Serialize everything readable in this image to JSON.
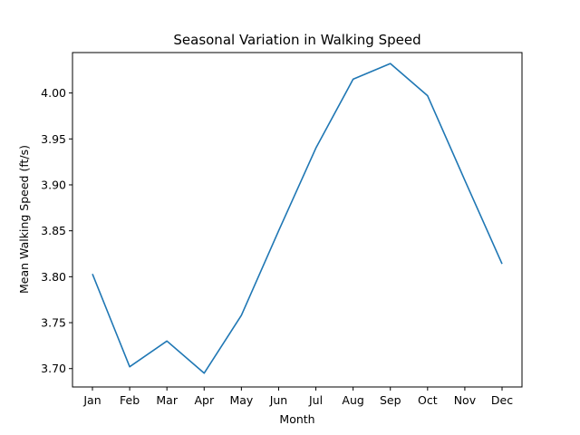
{
  "chart_data": {
    "type": "line",
    "title": "Seasonal Variation in Walking Speed",
    "xlabel": "Month",
    "ylabel": "Mean Walking Speed (ft/s)",
    "categories": [
      "Jan",
      "Feb",
      "Mar",
      "Apr",
      "May",
      "Jun",
      "Jul",
      "Aug",
      "Sep",
      "Oct",
      "Nov",
      "Dec"
    ],
    "series": [
      {
        "values": [
          3.803,
          3.702,
          3.73,
          3.695,
          3.758,
          3.85,
          3.94,
          4.015,
          4.032,
          3.997,
          3.905,
          3.814
        ],
        "color": "#1f77b4"
      }
    ],
    "ylim": [
      3.68,
      4.044
    ],
    "yticks": [
      3.7,
      3.75,
      3.8,
      3.85,
      3.9,
      3.95,
      4.0
    ],
    "ytick_labels": [
      "3.70",
      "3.75",
      "3.80",
      "3.85",
      "3.90",
      "3.95",
      "4.00"
    ],
    "grid": false,
    "legend": "none"
  }
}
